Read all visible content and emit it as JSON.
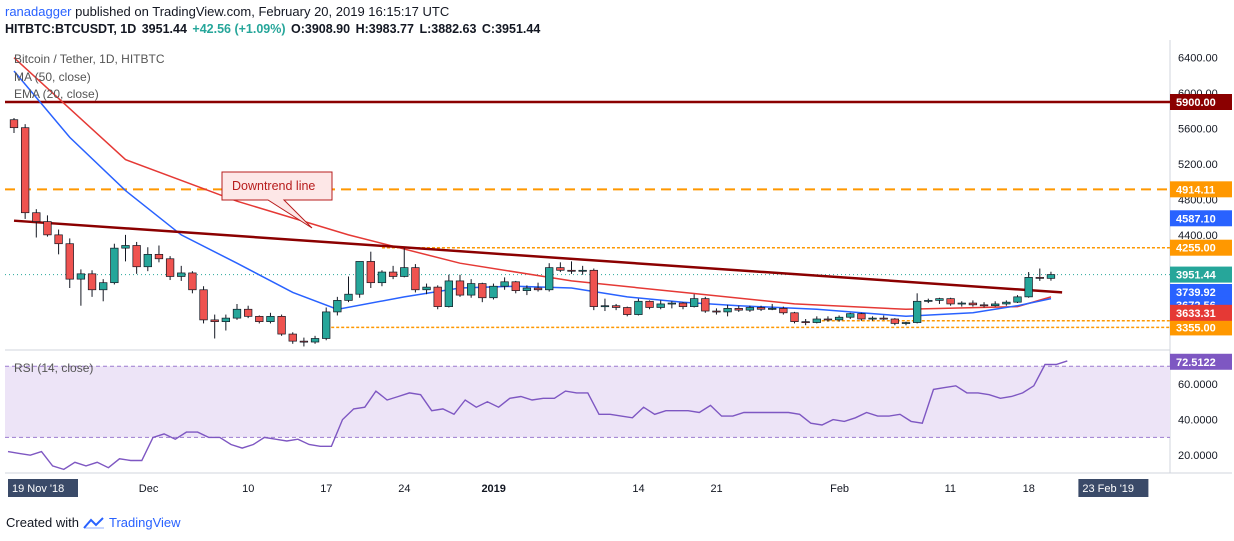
{
  "header": {
    "author": "ranadagger",
    "published_text": "published on TradingView.com, February 20, 2019 16:15:17 UTC",
    "symbol": "HITBTC:BTCUSDT, 1D",
    "last": "3951.44",
    "change": "+42.56 (+1.09%)",
    "open": "O:3908.90",
    "high": "H:3983.77",
    "low": "L:3882.63",
    "close": "C:3951.44"
  },
  "legend": {
    "title": "Bitcoin / Tether, 1D, HITBTC",
    "ma": "MA (50, close)",
    "ema": "EMA (20, close)",
    "rsi": "RSI (14, close)"
  },
  "footer": {
    "created_with": "Created with",
    "brand": "TradingView"
  },
  "colors": {
    "up": "#26a69a",
    "down": "#ef5350",
    "ma": "#e53935",
    "ema": "#2962ff",
    "resistance": "#8b0000",
    "orange": "#ff9800",
    "rsi": "#7e57c2"
  },
  "chart_data": {
    "type": "candlestick",
    "title": "Bitcoin / Tether, 1D, HITBTC",
    "ylim": [
      3100,
      6600
    ],
    "y_ticks": [
      "6400.00",
      "6000.00",
      "5600.00",
      "5200.00",
      "4800.00",
      "4400.00"
    ],
    "x_ticks": [
      "19 Nov '18",
      "Dec",
      "10",
      "17",
      "24",
      "2019",
      "14",
      "21",
      "Feb",
      "11",
      "18",
      "23 Feb '19"
    ],
    "start_date": "2018-11-19",
    "candles": [
      {
        "date": "2018-11-19",
        "o": 5700,
        "h": 5720,
        "l": 5550,
        "c": 5610
      },
      {
        "date": "2018-11-20",
        "o": 5610,
        "h": 5650,
        "l": 4580,
        "c": 4650
      },
      {
        "date": "2018-11-21",
        "o": 4650,
        "h": 4690,
        "l": 4370,
        "c": 4550
      },
      {
        "date": "2018-11-22",
        "o": 4550,
        "h": 4620,
        "l": 4380,
        "c": 4400
      },
      {
        "date": "2018-11-23",
        "o": 4400,
        "h": 4460,
        "l": 4180,
        "c": 4300
      },
      {
        "date": "2018-11-24",
        "o": 4300,
        "h": 4360,
        "l": 3800,
        "c": 3900
      },
      {
        "date": "2018-11-25",
        "o": 3900,
        "h": 4010,
        "l": 3600,
        "c": 3960
      },
      {
        "date": "2018-11-26",
        "o": 3960,
        "h": 4000,
        "l": 3700,
        "c": 3780
      },
      {
        "date": "2018-11-27",
        "o": 3780,
        "h": 3900,
        "l": 3650,
        "c": 3860
      },
      {
        "date": "2018-11-28",
        "o": 3860,
        "h": 4300,
        "l": 3840,
        "c": 4250
      },
      {
        "date": "2018-11-29",
        "o": 4250,
        "h": 4400,
        "l": 4100,
        "c": 4280
      },
      {
        "date": "2018-11-30",
        "o": 4280,
        "h": 4320,
        "l": 3960,
        "c": 4040
      },
      {
        "date": "2018-12-01",
        "o": 4040,
        "h": 4260,
        "l": 3990,
        "c": 4180
      },
      {
        "date": "2018-12-02",
        "o": 4180,
        "h": 4280,
        "l": 4090,
        "c": 4130
      },
      {
        "date": "2018-12-03",
        "o": 4130,
        "h": 4160,
        "l": 3890,
        "c": 3930
      },
      {
        "date": "2018-12-04",
        "o": 3930,
        "h": 4050,
        "l": 3880,
        "c": 3970
      },
      {
        "date": "2018-12-05",
        "o": 3970,
        "h": 3990,
        "l": 3740,
        "c": 3780
      },
      {
        "date": "2018-12-06",
        "o": 3780,
        "h": 3820,
        "l": 3400,
        "c": 3440
      },
      {
        "date": "2018-12-07",
        "o": 3440,
        "h": 3500,
        "l": 3230,
        "c": 3420
      },
      {
        "date": "2018-12-08",
        "o": 3420,
        "h": 3500,
        "l": 3320,
        "c": 3460
      },
      {
        "date": "2018-12-09",
        "o": 3460,
        "h": 3620,
        "l": 3440,
        "c": 3560
      },
      {
        "date": "2018-12-10",
        "o": 3560,
        "h": 3600,
        "l": 3460,
        "c": 3480
      },
      {
        "date": "2018-12-11",
        "o": 3480,
        "h": 3490,
        "l": 3400,
        "c": 3420
      },
      {
        "date": "2018-12-12",
        "o": 3420,
        "h": 3520,
        "l": 3400,
        "c": 3480
      },
      {
        "date": "2018-12-13",
        "o": 3480,
        "h": 3500,
        "l": 3260,
        "c": 3280
      },
      {
        "date": "2018-12-14",
        "o": 3280,
        "h": 3300,
        "l": 3170,
        "c": 3200
      },
      {
        "date": "2018-12-15",
        "o": 3200,
        "h": 3240,
        "l": 3140,
        "c": 3190
      },
      {
        "date": "2018-12-16",
        "o": 3190,
        "h": 3260,
        "l": 3170,
        "c": 3230
      },
      {
        "date": "2018-12-17",
        "o": 3230,
        "h": 3580,
        "l": 3210,
        "c": 3530
      },
      {
        "date": "2018-12-18",
        "o": 3530,
        "h": 3700,
        "l": 3490,
        "c": 3660
      },
      {
        "date": "2018-12-19",
        "o": 3660,
        "h": 3930,
        "l": 3640,
        "c": 3730
      },
      {
        "date": "2018-12-20",
        "o": 3730,
        "h": 4100,
        "l": 3690,
        "c": 4100
      },
      {
        "date": "2018-12-21",
        "o": 4100,
        "h": 4210,
        "l": 3800,
        "c": 3860
      },
      {
        "date": "2018-12-22",
        "o": 3860,
        "h": 4000,
        "l": 3820,
        "c": 3980
      },
      {
        "date": "2018-12-23",
        "o": 3980,
        "h": 4050,
        "l": 3900,
        "c": 3930
      },
      {
        "date": "2018-12-24",
        "o": 3930,
        "h": 4250,
        "l": 3920,
        "c": 4030
      },
      {
        "date": "2018-12-25",
        "o": 4030,
        "h": 4070,
        "l": 3750,
        "c": 3780
      },
      {
        "date": "2018-12-26",
        "o": 3780,
        "h": 3850,
        "l": 3730,
        "c": 3810
      },
      {
        "date": "2018-12-27",
        "o": 3810,
        "h": 3830,
        "l": 3560,
        "c": 3590
      },
      {
        "date": "2018-12-28",
        "o": 3590,
        "h": 3950,
        "l": 3580,
        "c": 3880
      },
      {
        "date": "2018-12-29",
        "o": 3880,
        "h": 3950,
        "l": 3700,
        "c": 3720
      },
      {
        "date": "2018-12-30",
        "o": 3720,
        "h": 3900,
        "l": 3690,
        "c": 3850
      },
      {
        "date": "2018-12-31",
        "o": 3850,
        "h": 3860,
        "l": 3640,
        "c": 3690
      },
      {
        "date": "2019-01-01",
        "o": 3690,
        "h": 3850,
        "l": 3670,
        "c": 3820
      },
      {
        "date": "2019-01-02",
        "o": 3820,
        "h": 3920,
        "l": 3780,
        "c": 3870
      },
      {
        "date": "2019-01-03",
        "o": 3870,
        "h": 3880,
        "l": 3740,
        "c": 3770
      },
      {
        "date": "2019-01-04",
        "o": 3770,
        "h": 3830,
        "l": 3720,
        "c": 3800
      },
      {
        "date": "2019-01-05",
        "o": 3800,
        "h": 3860,
        "l": 3760,
        "c": 3780
      },
      {
        "date": "2019-01-06",
        "o": 3780,
        "h": 4080,
        "l": 3760,
        "c": 4030
      },
      {
        "date": "2019-01-07",
        "o": 4030,
        "h": 4090,
        "l": 3980,
        "c": 4000
      },
      {
        "date": "2019-01-08",
        "o": 4000,
        "h": 4100,
        "l": 3960,
        "c": 3990
      },
      {
        "date": "2019-01-09",
        "o": 3990,
        "h": 4050,
        "l": 3950,
        "c": 4000
      },
      {
        "date": "2019-01-10",
        "o": 4000,
        "h": 4020,
        "l": 3550,
        "c": 3590
      },
      {
        "date": "2019-01-11",
        "o": 3590,
        "h": 3680,
        "l": 3540,
        "c": 3600
      },
      {
        "date": "2019-01-12",
        "o": 3600,
        "h": 3620,
        "l": 3550,
        "c": 3580
      },
      {
        "date": "2019-01-13",
        "o": 3580,
        "h": 3590,
        "l": 3480,
        "c": 3500
      },
      {
        "date": "2019-01-14",
        "o": 3500,
        "h": 3680,
        "l": 3490,
        "c": 3650
      },
      {
        "date": "2019-01-15",
        "o": 3650,
        "h": 3660,
        "l": 3560,
        "c": 3580
      },
      {
        "date": "2019-01-16",
        "o": 3580,
        "h": 3660,
        "l": 3560,
        "c": 3620
      },
      {
        "date": "2019-01-17",
        "o": 3620,
        "h": 3650,
        "l": 3570,
        "c": 3630
      },
      {
        "date": "2019-01-18",
        "o": 3630,
        "h": 3640,
        "l": 3560,
        "c": 3590
      },
      {
        "date": "2019-01-19",
        "o": 3590,
        "h": 3730,
        "l": 3580,
        "c": 3680
      },
      {
        "date": "2019-01-20",
        "o": 3680,
        "h": 3700,
        "l": 3520,
        "c": 3540
      },
      {
        "date": "2019-01-21",
        "o": 3540,
        "h": 3570,
        "l": 3500,
        "c": 3530
      },
      {
        "date": "2019-01-22",
        "o": 3530,
        "h": 3610,
        "l": 3480,
        "c": 3570
      },
      {
        "date": "2019-01-23",
        "o": 3570,
        "h": 3600,
        "l": 3530,
        "c": 3550
      },
      {
        "date": "2019-01-24",
        "o": 3550,
        "h": 3600,
        "l": 3530,
        "c": 3580
      },
      {
        "date": "2019-01-25",
        "o": 3580,
        "h": 3600,
        "l": 3540,
        "c": 3560
      },
      {
        "date": "2019-01-26",
        "o": 3560,
        "h": 3620,
        "l": 3550,
        "c": 3570
      },
      {
        "date": "2019-01-27",
        "o": 3570,
        "h": 3590,
        "l": 3500,
        "c": 3520
      },
      {
        "date": "2019-01-28",
        "o": 3520,
        "h": 3530,
        "l": 3400,
        "c": 3420
      },
      {
        "date": "2019-01-29",
        "o": 3420,
        "h": 3450,
        "l": 3380,
        "c": 3410
      },
      {
        "date": "2019-01-30",
        "o": 3410,
        "h": 3480,
        "l": 3400,
        "c": 3450
      },
      {
        "date": "2019-01-31",
        "o": 3450,
        "h": 3480,
        "l": 3420,
        "c": 3440
      },
      {
        "date": "2019-02-01",
        "o": 3440,
        "h": 3490,
        "l": 3420,
        "c": 3470
      },
      {
        "date": "2019-02-02",
        "o": 3470,
        "h": 3520,
        "l": 3450,
        "c": 3510
      },
      {
        "date": "2019-02-03",
        "o": 3510,
        "h": 3520,
        "l": 3430,
        "c": 3450
      },
      {
        "date": "2019-02-04",
        "o": 3450,
        "h": 3480,
        "l": 3430,
        "c": 3460
      },
      {
        "date": "2019-02-05",
        "o": 3460,
        "h": 3490,
        "l": 3440,
        "c": 3450
      },
      {
        "date": "2019-02-06",
        "o": 3450,
        "h": 3460,
        "l": 3380,
        "c": 3400
      },
      {
        "date": "2019-02-07",
        "o": 3400,
        "h": 3420,
        "l": 3380,
        "c": 3410
      },
      {
        "date": "2019-02-08",
        "o": 3410,
        "h": 3740,
        "l": 3400,
        "c": 3650
      },
      {
        "date": "2019-02-09",
        "o": 3650,
        "h": 3680,
        "l": 3630,
        "c": 3660
      },
      {
        "date": "2019-02-10",
        "o": 3660,
        "h": 3690,
        "l": 3620,
        "c": 3680
      },
      {
        "date": "2019-02-11",
        "o": 3680,
        "h": 3690,
        "l": 3600,
        "c": 3620
      },
      {
        "date": "2019-02-12",
        "o": 3620,
        "h": 3650,
        "l": 3590,
        "c": 3630
      },
      {
        "date": "2019-02-13",
        "o": 3630,
        "h": 3660,
        "l": 3590,
        "c": 3610
      },
      {
        "date": "2019-02-14",
        "o": 3610,
        "h": 3640,
        "l": 3580,
        "c": 3600
      },
      {
        "date": "2019-02-15",
        "o": 3600,
        "h": 3650,
        "l": 3590,
        "c": 3620
      },
      {
        "date": "2019-02-16",
        "o": 3620,
        "h": 3660,
        "l": 3600,
        "c": 3640
      },
      {
        "date": "2019-02-17",
        "o": 3640,
        "h": 3720,
        "l": 3630,
        "c": 3700
      },
      {
        "date": "2019-02-18",
        "o": 3700,
        "h": 3980,
        "l": 3690,
        "c": 3920
      },
      {
        "date": "2019-02-19",
        "o": 3920,
        "h": 4020,
        "l": 3880,
        "c": 3910
      },
      {
        "date": "2019-02-20",
        "o": 3908.9,
        "h": 3983.77,
        "l": 3882.63,
        "c": 3951.44
      }
    ],
    "ma50": [
      [
        0,
        6400
      ],
      [
        10,
        5250
      ],
      [
        20,
        4780
      ],
      [
        30,
        4400
      ],
      [
        40,
        4080
      ],
      [
        50,
        3880
      ],
      [
        60,
        3750
      ],
      [
        70,
        3620
      ],
      [
        80,
        3560
      ],
      [
        90,
        3590
      ],
      [
        93,
        3700
      ]
    ],
    "ema20": [
      [
        0,
        6250
      ],
      [
        5,
        5500
      ],
      [
        10,
        4900
      ],
      [
        15,
        4400
      ],
      [
        20,
        4080
      ],
      [
        25,
        3750
      ],
      [
        29,
        3560
      ],
      [
        35,
        3700
      ],
      [
        40,
        3800
      ],
      [
        45,
        3820
      ],
      [
        50,
        3800
      ],
      [
        55,
        3700
      ],
      [
        60,
        3640
      ],
      [
        65,
        3600
      ],
      [
        72,
        3560
      ],
      [
        80,
        3480
      ],
      [
        86,
        3520
      ],
      [
        90,
        3600
      ],
      [
        93,
        3680
      ]
    ],
    "horizontal_levels": [
      {
        "value": 5900,
        "label": "5900.00",
        "style": "solid",
        "color": "#8b0000"
      },
      {
        "value": 4914.11,
        "label": "4914.11",
        "style": "dashed",
        "color": "#ff9800"
      },
      {
        "value": 4255,
        "label": "4255.00",
        "style": "dotted",
        "color": "#ff9800"
      },
      {
        "value": 3355,
        "label": "3355.00",
        "style": "dotted",
        "color": "#ff9800"
      }
    ],
    "downtrend_line": {
      "from": [
        0,
        4560
      ],
      "to": [
        94,
        3750
      ]
    },
    "annotation": {
      "text": "Downtrend line"
    },
    "price_labels": [
      {
        "value": 4587.1,
        "label": "4587.10",
        "color": "#2962ff"
      },
      {
        "value": 3951.44,
        "label": "3951.44",
        "color": "#26a69a"
      },
      {
        "value": 3739.92,
        "label": "3739.92",
        "color": "#2962ff"
      },
      {
        "value": 3672.56,
        "label": "3672.56",
        "color": "#2962ff"
      },
      {
        "value": 3633.31,
        "label": "3633.31",
        "color": "#e53935"
      }
    ],
    "rsi": {
      "ylim": [
        10,
        78
      ],
      "y_ticks": [
        "60.0000",
        "40.0000",
        "20.0000"
      ],
      "band": [
        30,
        70
      ],
      "last_label": "72.5122",
      "values": [
        22,
        21,
        20,
        22,
        14,
        12,
        16,
        14,
        16,
        13,
        18,
        17,
        17,
        30,
        32,
        29,
        33,
        33,
        30,
        30,
        26,
        24,
        26,
        30,
        29,
        28,
        29,
        26,
        25,
        25,
        40,
        46,
        47,
        56,
        51,
        53,
        55,
        54,
        45,
        46,
        43,
        51,
        47,
        50,
        47,
        52,
        53,
        51,
        52,
        52,
        56,
        55,
        55,
        43,
        43,
        42,
        41,
        47,
        43,
        45,
        45,
        45,
        44,
        48,
        42,
        42,
        44,
        44,
        44,
        44,
        44,
        43,
        38,
        37,
        40,
        39,
        41,
        44,
        42,
        42,
        43,
        39,
        38,
        57,
        58,
        59,
        55,
        55,
        54,
        52,
        53,
        55,
        59,
        71,
        71,
        73
      ]
    }
  }
}
